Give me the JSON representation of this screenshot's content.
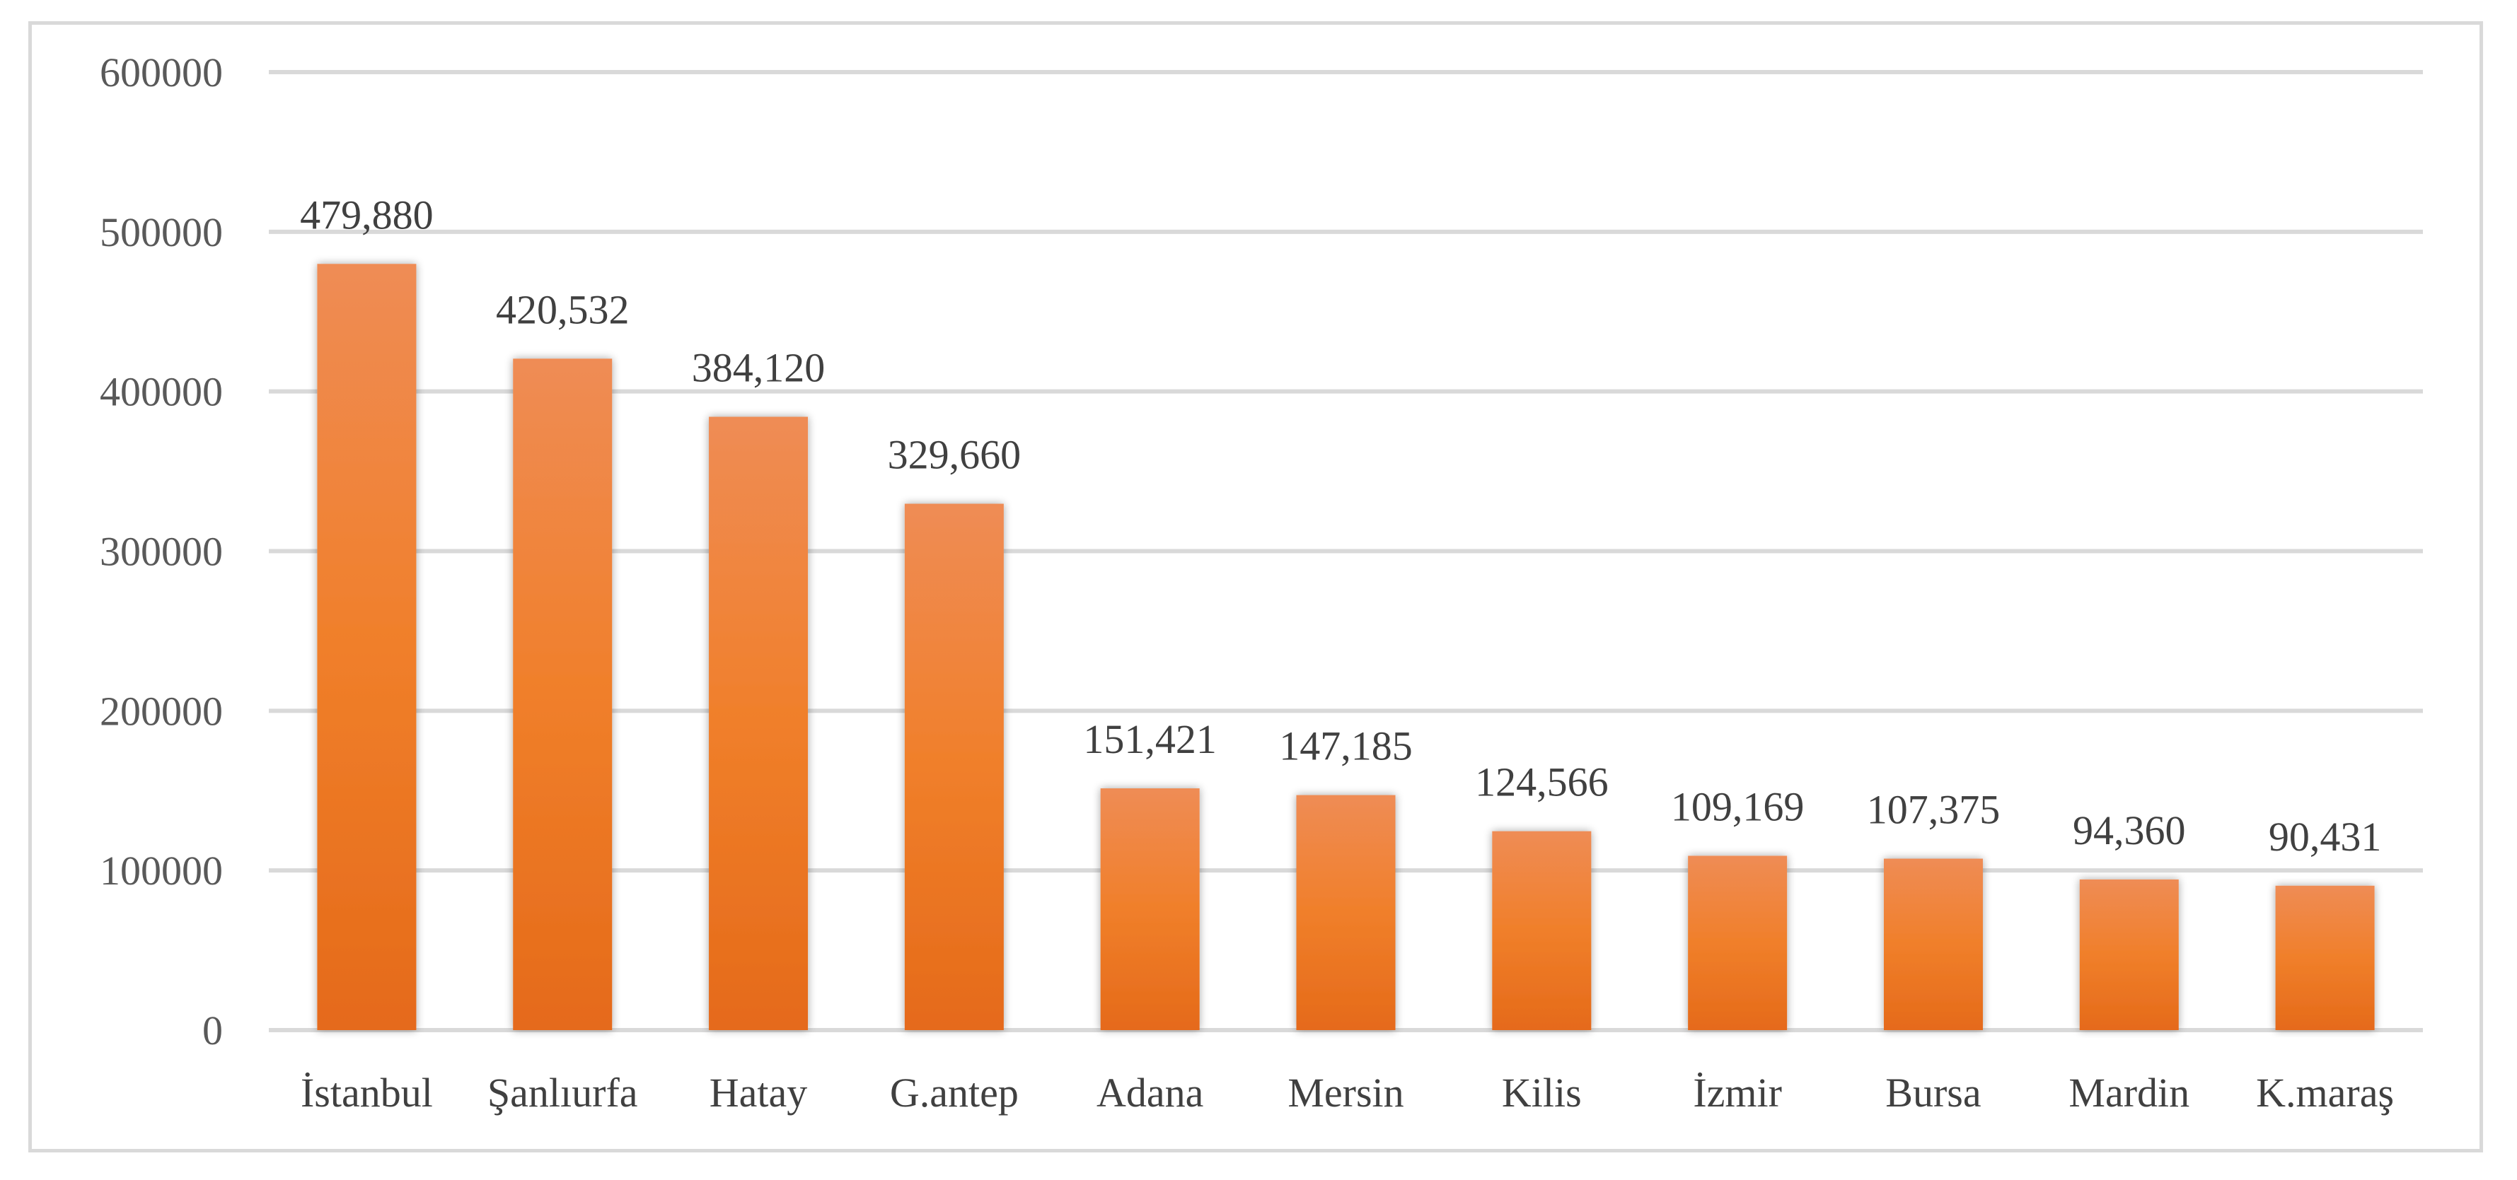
{
  "chart_data": {
    "type": "bar",
    "categories": [
      "İstanbul",
      "Şanlıurfa",
      "Hatay",
      "G.antep",
      "Adana",
      "Mersin",
      "Kilis",
      "İzmir",
      "Bursa",
      "Mardin",
      "K.maraş"
    ],
    "values": [
      479880,
      420532,
      384120,
      329660,
      151421,
      147185,
      124566,
      109169,
      107375,
      94360,
      90431
    ],
    "data_labels": [
      "479,880",
      "420,532",
      "384,120",
      "329,660",
      "151,421",
      "147,185",
      "124,566",
      "109,169",
      "107,375",
      "94,360",
      "90,431"
    ],
    "y_ticks": [
      "0",
      "100000",
      "200000",
      "300000",
      "400000",
      "500000",
      "600000"
    ],
    "ylim": [
      0,
      600000
    ],
    "grid": true,
    "legend": "none",
    "bar_color_top": "#ef8c55",
    "bar_color_mid": "#f07f2a",
    "bar_color_bottom": "#e56a1a",
    "grid_color": "#d9d9d9"
  }
}
